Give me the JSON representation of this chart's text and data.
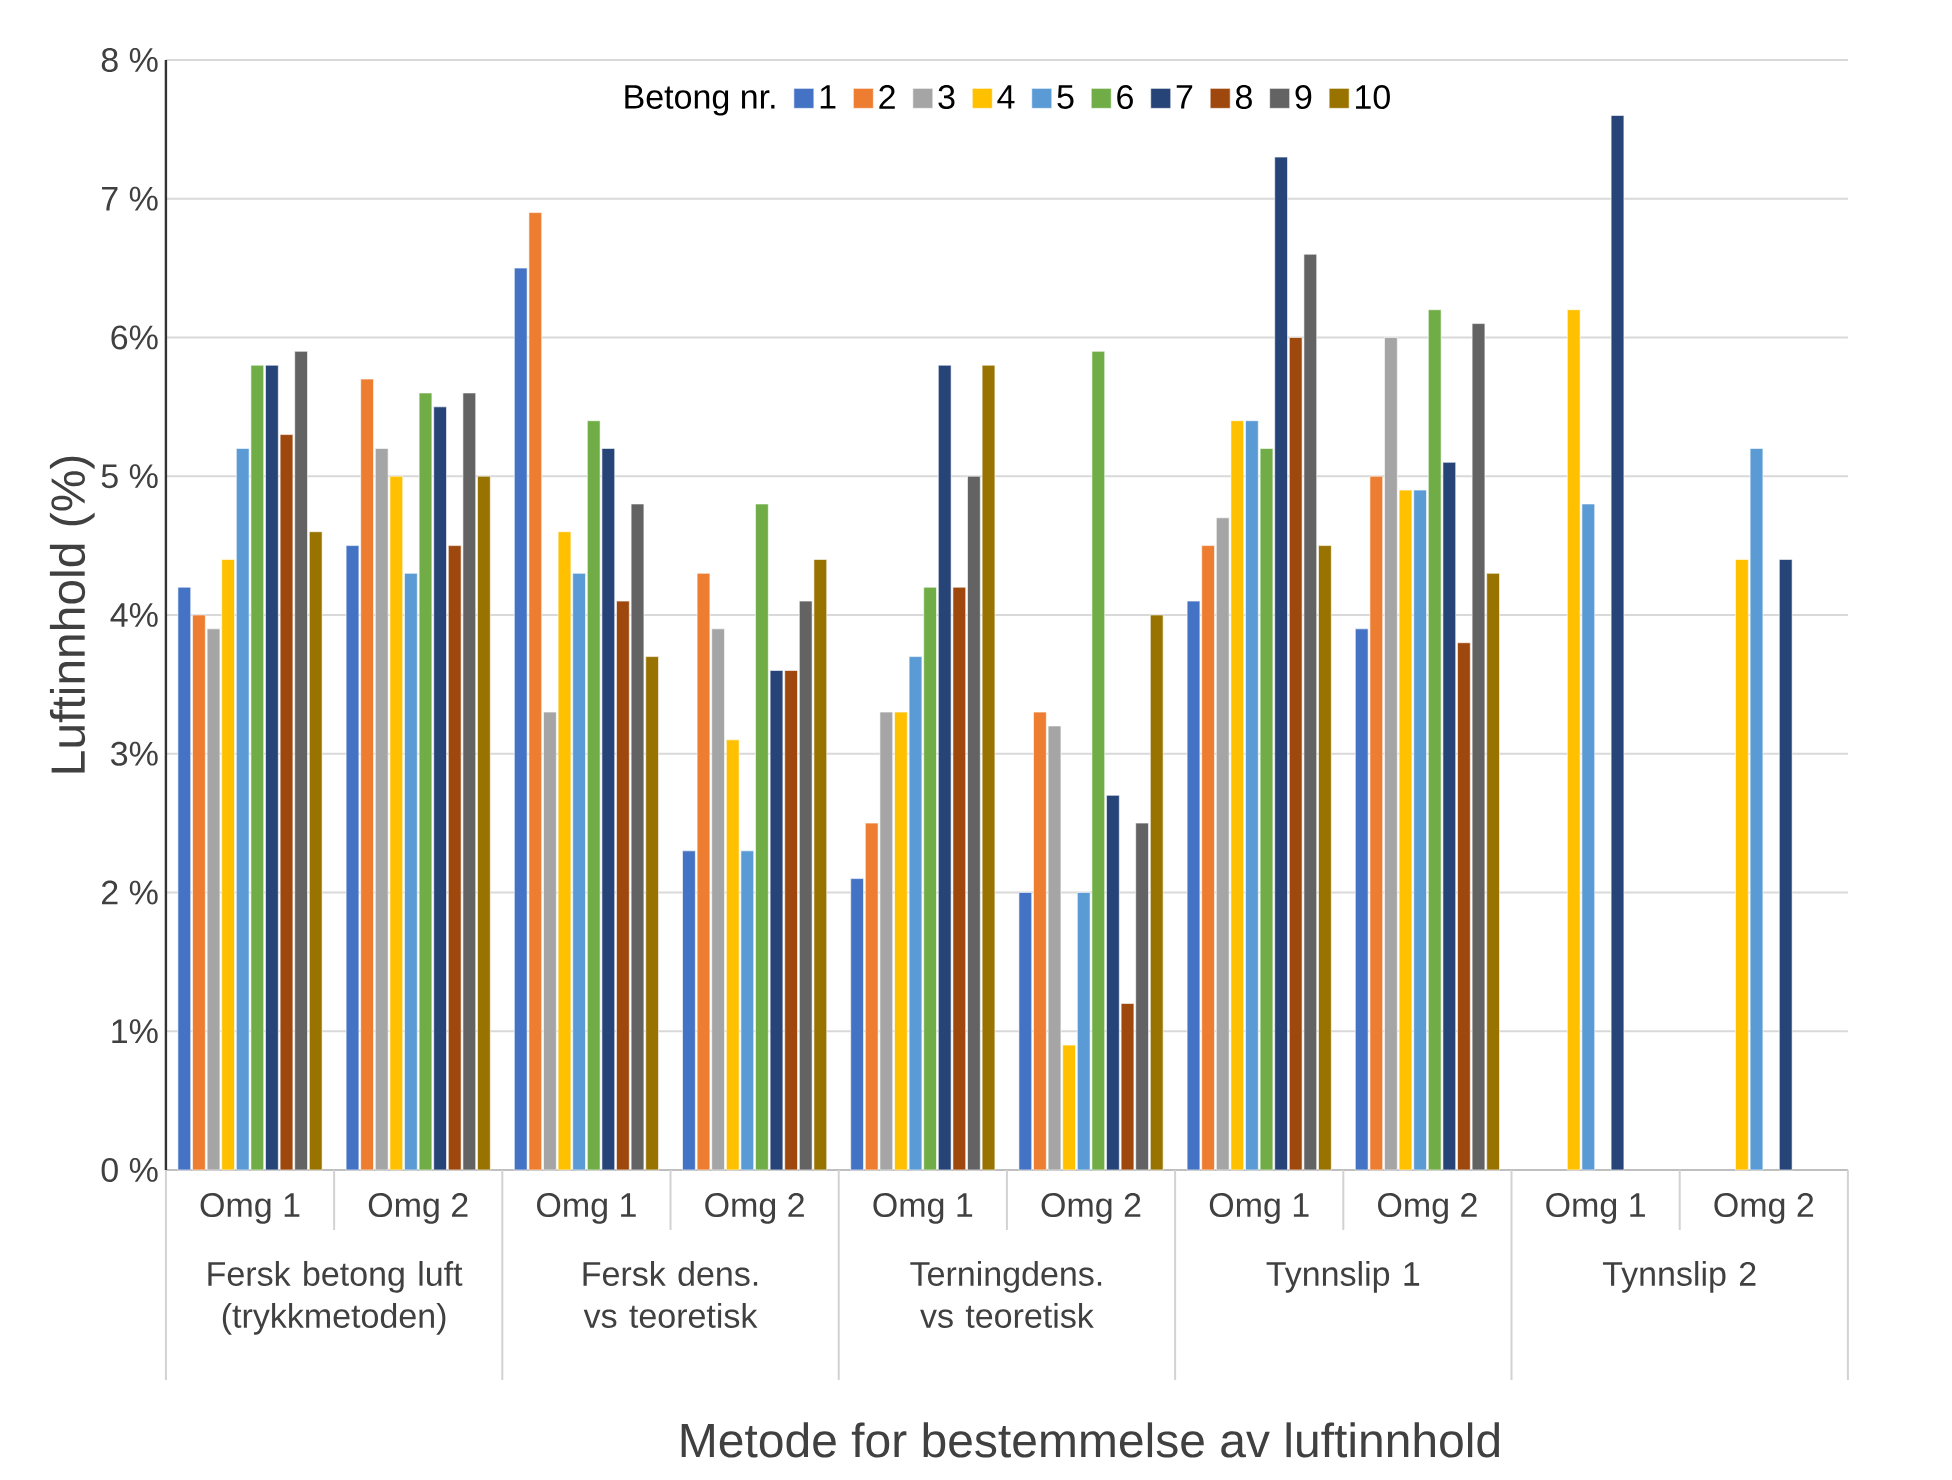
{
  "chart_data": {
    "type": "bar",
    "xlabel": "Metode for bestemmelse av luftinnhold",
    "ylabel": "Luftinnhold (%)",
    "legend_title": "Betong nr.",
    "legend": "top",
    "grid": "y",
    "categories": [
      "Omg 1",
      "Omg 2",
      "Omg 1",
      "Omg 2",
      "Omg 1",
      "Omg 2",
      "Omg 1",
      "Omg 2",
      "Omg 1",
      "Omg 2"
    ],
    "annotations": [
      "Fersk betong luft (trykkmetoden)",
      "Fersk dens. vs teoretisk",
      "Terningdens. vs teoretisk",
      "Tynnslip 1",
      "Tynnslip 2"
    ],
    "ylim": [
      0,
      8
    ],
    "yticks": [
      {
        "value": 0,
        "label": "0 %"
      },
      {
        "value": 1,
        "label": "1%"
      },
      {
        "value": 2,
        "label": "2 %"
      },
      {
        "value": 3,
        "label": "3%"
      },
      {
        "value": 4,
        "label": "4%"
      },
      {
        "value": 5,
        "label": "5 %"
      },
      {
        "value": 6,
        "label": "6%"
      },
      {
        "value": 7,
        "label": "7 %"
      },
      {
        "value": 8,
        "label": "8 %"
      }
    ],
    "series": [
      {
        "name": "1",
        "color": "#4472c4",
        "values": [
          4.2,
          4.5,
          6.5,
          2.3,
          2.1,
          2.0,
          4.1,
          3.9,
          null,
          null
        ]
      },
      {
        "name": "2",
        "color": "#ed7d31",
        "values": [
          4.0,
          5.7,
          6.9,
          4.3,
          2.5,
          3.3,
          4.5,
          5.0,
          null,
          null
        ]
      },
      {
        "name": "3",
        "color": "#a5a5a5",
        "values": [
          3.9,
          5.2,
          3.3,
          3.9,
          3.3,
          3.2,
          4.7,
          6.0,
          null,
          null
        ]
      },
      {
        "name": "4",
        "color": "#ffc000",
        "values": [
          4.4,
          5.0,
          4.6,
          3.1,
          3.3,
          0.9,
          5.4,
          4.9,
          6.2,
          4.4
        ]
      },
      {
        "name": "5",
        "color": "#5b9bd5",
        "values": [
          5.2,
          4.3,
          4.3,
          2.3,
          3.7,
          2.0,
          5.4,
          4.9,
          4.8,
          5.2
        ]
      },
      {
        "name": "6",
        "color": "#70ad47",
        "values": [
          5.8,
          5.6,
          5.4,
          4.8,
          4.2,
          5.9,
          5.2,
          6.2,
          null,
          null
        ]
      },
      {
        "name": "7",
        "color": "#264478",
        "values": [
          5.8,
          5.5,
          5.2,
          3.6,
          5.8,
          2.7,
          7.3,
          5.1,
          7.6,
          4.4
        ]
      },
      {
        "name": "8",
        "color": "#9e480e",
        "values": [
          5.3,
          4.5,
          4.1,
          3.6,
          4.2,
          1.2,
          6.0,
          3.8,
          null,
          null
        ]
      },
      {
        "name": "9",
        "color": "#636363",
        "values": [
          5.9,
          5.6,
          4.8,
          4.1,
          5.0,
          2.5,
          6.6,
          6.1,
          null,
          null
        ]
      },
      {
        "name": "10",
        "color": "#997300",
        "values": [
          4.6,
          5.0,
          3.7,
          4.4,
          5.8,
          4.0,
          4.5,
          4.3,
          null,
          null
        ]
      }
    ]
  }
}
